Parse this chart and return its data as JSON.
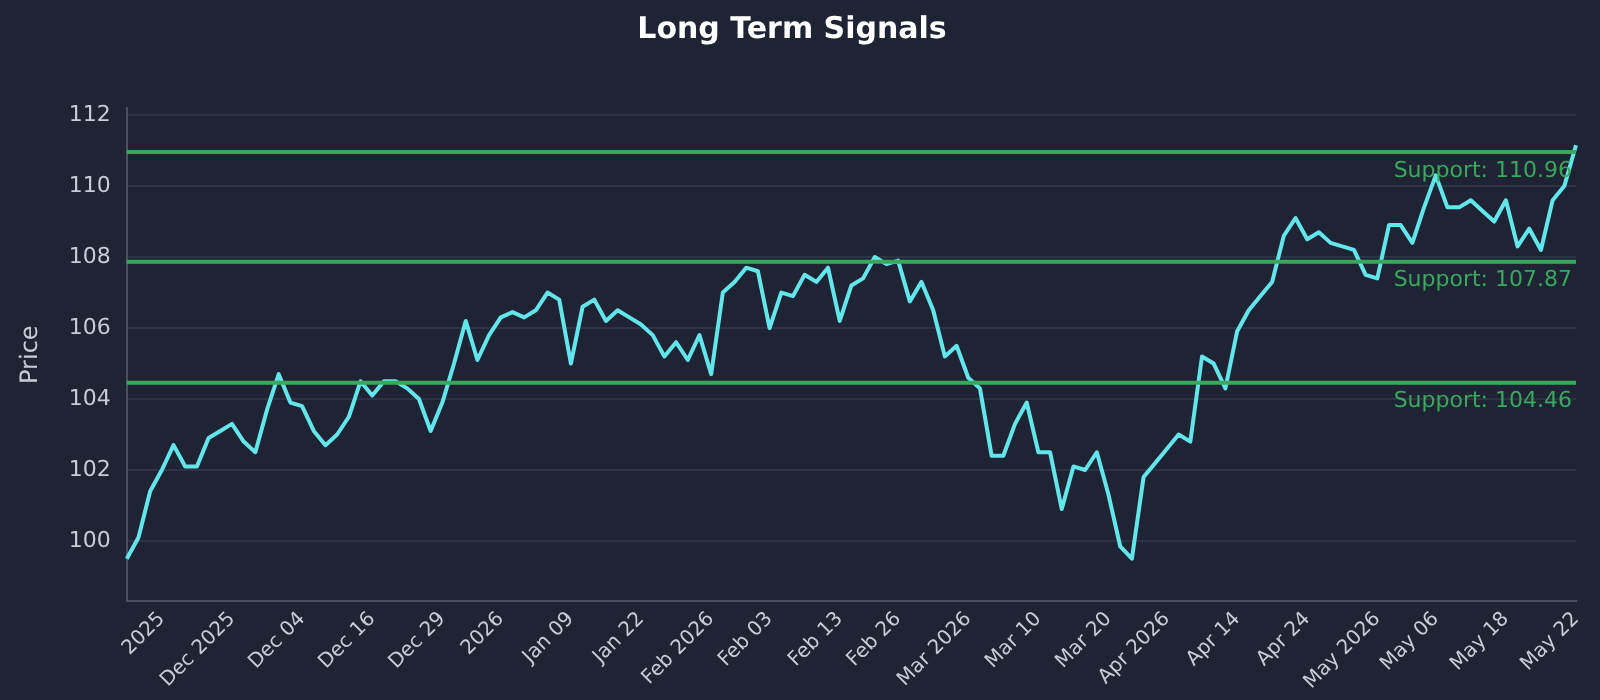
{
  "chart_data": {
    "type": "line",
    "title": "Long Term Signals",
    "ylabel": "Price",
    "categories": [
      null,
      null,
      null,
      "2025",
      null,
      null,
      null,
      null,
      null,
      "Dec 2025",
      null,
      null,
      null,
      null,
      null,
      "Dec 04",
      null,
      null,
      null,
      null,
      null,
      "Dec 16",
      null,
      null,
      null,
      null,
      null,
      "Dec 29",
      null,
      null,
      null,
      null,
      "2026",
      null,
      null,
      null,
      null,
      null,
      "Jan 09",
      null,
      null,
      null,
      null,
      null,
      "Jan 22",
      null,
      null,
      null,
      null,
      null,
      "Feb 2026",
      null,
      null,
      null,
      null,
      "Feb 03",
      null,
      null,
      null,
      null,
      null,
      "Feb 13",
      null,
      null,
      null,
      null,
      "Feb 26",
      null,
      null,
      null,
      null,
      null,
      "Mar 2026",
      null,
      null,
      null,
      null,
      null,
      "Mar 10",
      null,
      null,
      null,
      null,
      null,
      "Mar 20",
      null,
      null,
      null,
      null,
      "Apr 2026",
      null,
      null,
      null,
      null,
      null,
      "Apr 14",
      null,
      null,
      null,
      null,
      null,
      "Apr 24",
      null,
      null,
      null,
      null,
      null,
      "May 2026",
      null,
      null,
      null,
      null,
      "May 06",
      null,
      null,
      null,
      null,
      null,
      "May 18",
      null,
      null,
      null,
      null,
      null,
      "May 22"
    ],
    "series": [
      {
        "color": "#62e6ec",
        "values": [
          99.5,
          100.1,
          101.4,
          102.0,
          102.7,
          102.1,
          102.1,
          102.9,
          103.1,
          103.3,
          102.8,
          102.5,
          103.7,
          104.7,
          103.9,
          103.8,
          103.1,
          102.7,
          103.0,
          103.5,
          104.5,
          104.1,
          104.5,
          104.5,
          104.3,
          104.0,
          103.1,
          103.9,
          105.0,
          106.2,
          105.1,
          105.8,
          106.3,
          106.45,
          106.3,
          106.5,
          107.0,
          106.8,
          105.0,
          106.6,
          106.8,
          106.2,
          106.5,
          106.3,
          106.1,
          105.8,
          105.2,
          105.6,
          105.1,
          105.8,
          104.7,
          107.0,
          107.3,
          107.7,
          107.6,
          106.0,
          107.0,
          106.9,
          107.5,
          107.3,
          107.7,
          106.2,
          107.2,
          107.4,
          108.0,
          107.8,
          107.9,
          106.75,
          107.3,
          106.5,
          105.2,
          105.5,
          104.6,
          104.3,
          102.4,
          102.4,
          103.3,
          103.9,
          102.5,
          102.5,
          100.9,
          102.1,
          102.0,
          102.5,
          101.3,
          99.85,
          99.5,
          101.8,
          102.2,
          102.6,
          103.0,
          102.8,
          105.2,
          105.0,
          104.3,
          105.9,
          106.5,
          106.9,
          107.3,
          108.6,
          109.1,
          108.5,
          108.7,
          108.4,
          108.3,
          108.2,
          107.5,
          107.4,
          108.9,
          108.9,
          108.4,
          109.4,
          110.3,
          109.4,
          109.4,
          109.6,
          109.3,
          109.0,
          109.6,
          108.3,
          108.8,
          108.2,
          109.6,
          110.0,
          111.15
        ]
      }
    ],
    "ylim": [
      98.3,
      112.2
    ],
    "yticks": [
      100,
      102,
      104,
      106,
      108,
      110,
      112
    ],
    "grid": "y",
    "marker": "none",
    "line_style": "solid",
    "legend": false,
    "ref_lines": [
      {
        "axis": "y",
        "value": 110.96,
        "label": "Support: 110.96",
        "color": "#3aa85c"
      },
      {
        "axis": "y",
        "value": 107.87,
        "label": "Support: 107.87",
        "color": "#3aa85c"
      },
      {
        "axis": "y",
        "value": 104.46,
        "label": "Support: 104.46",
        "color": "#3aa85c"
      }
    ]
  }
}
